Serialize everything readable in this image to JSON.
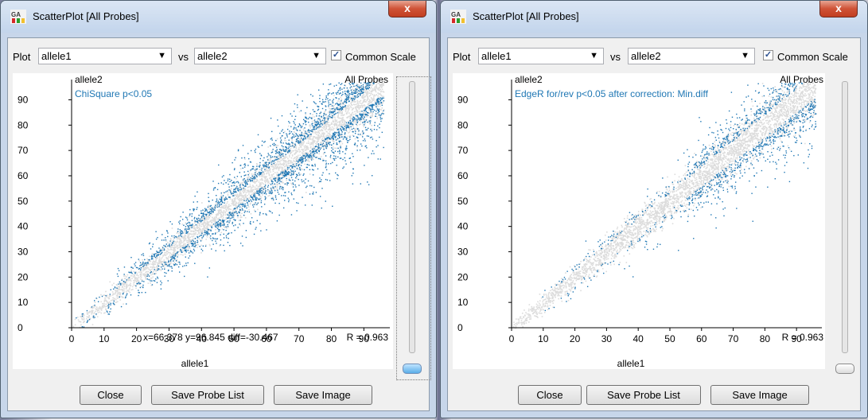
{
  "windows": [
    {
      "title": "ScatterPlot [All Probes]",
      "close_glyph": "x",
      "plot_label": "Plot",
      "x_select": "allele1",
      "vs_label": "vs",
      "y_select": "allele2",
      "common_scale_label": "Common Scale",
      "common_scale_checked": true,
      "plot_subtitle": "ChiSquare p<0.05",
      "probes_label": "All Probes",
      "cursor_readout": "x=66.378 y=96.845 diff=-30.467",
      "r_text": "R = 0.963",
      "buttons": {
        "close": "Close",
        "save_probe_list": "Save Probe List",
        "save_image": "Save Image"
      }
    },
    {
      "title": "ScatterPlot [All Probes]",
      "close_glyph": "x",
      "plot_label": "Plot",
      "x_select": "allele1",
      "vs_label": "vs",
      "y_select": "allele2",
      "common_scale_label": "Common Scale",
      "common_scale_checked": true,
      "plot_subtitle": "EdgeR for/rev p<0.05 after correction: Min.diff",
      "probes_label": "All Probes",
      "cursor_readout": "",
      "r_text": "R = 0.963",
      "buttons": {
        "close": "Close",
        "save_probe_list": "Save Probe List",
        "save_image": "Save Image"
      }
    }
  ],
  "chart_data": [
    {
      "type": "scatter",
      "xlabel": "allele1",
      "ylabel": "allele2",
      "xlim": [
        0,
        98
      ],
      "ylim": [
        0,
        98
      ],
      "x_ticks": [
        0,
        10,
        20,
        30,
        40,
        50,
        60,
        70,
        80,
        90
      ],
      "y_ticks": [
        0,
        10,
        20,
        30,
        40,
        50,
        60,
        70,
        80,
        90
      ],
      "series": [
        {
          "role": "all probes",
          "color": "#dcdcdc"
        },
        {
          "role": "highlighted (ChiSquare p<0.05)",
          "color": "#1f77b4"
        }
      ],
      "correlation": 0.963
    },
    {
      "type": "scatter",
      "xlabel": "allele1",
      "ylabel": "allele2",
      "xlim": [
        0,
        98
      ],
      "ylim": [
        0,
        98
      ],
      "x_ticks": [
        0,
        10,
        20,
        30,
        40,
        50,
        60,
        70,
        80,
        90
      ],
      "y_ticks": [
        0,
        10,
        20,
        30,
        40,
        50,
        60,
        70,
        80,
        90
      ],
      "series": [
        {
          "role": "all probes",
          "color": "#dcdcdc"
        },
        {
          "role": "highlighted (EdgeR for/rev p<0.05)",
          "color": "#1f77b4"
        }
      ],
      "correlation": 0.963
    }
  ],
  "colors": {
    "highlight": "#1f77b4",
    "background_points": "#dcdcdc",
    "subtitle": "#1f77b4"
  }
}
